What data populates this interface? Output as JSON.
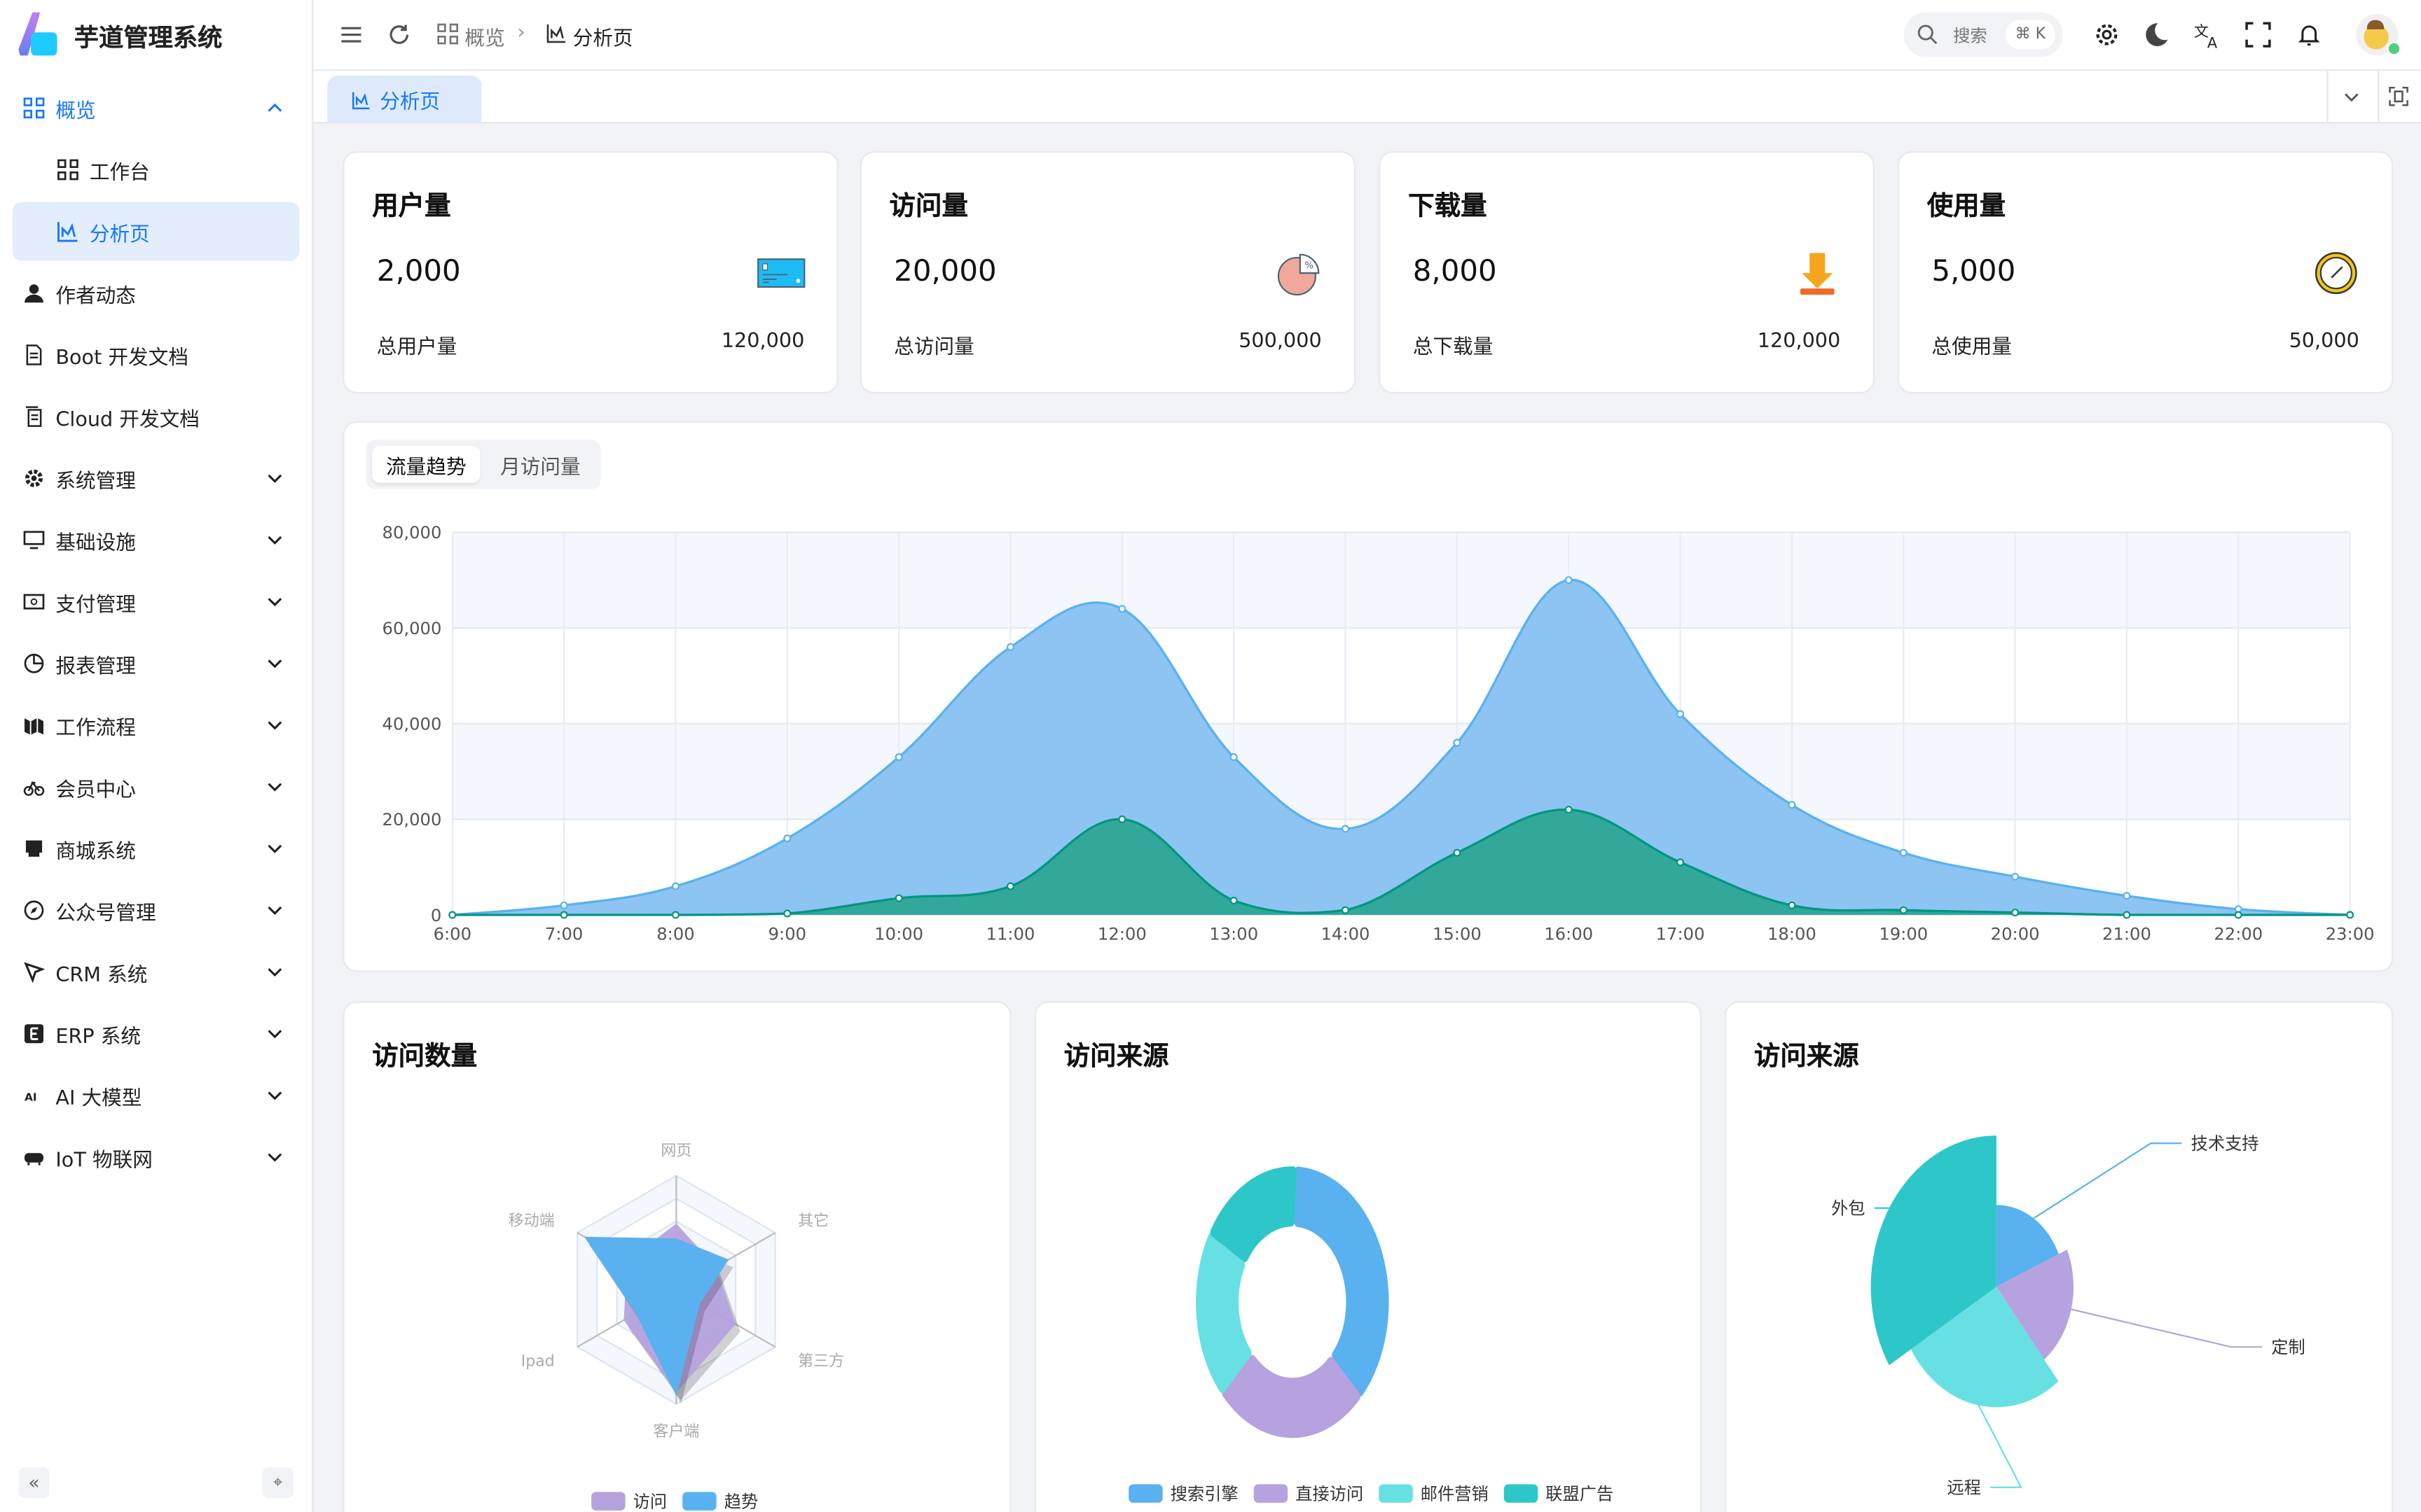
{
  "app": {
    "title": "芋道管理系统"
  },
  "sidebar": {
    "items": [
      {
        "label": "概览",
        "icon": "grid-icon",
        "expanded": true
      },
      {
        "label": "工作台",
        "icon": "grid-icon",
        "sub": true
      },
      {
        "label": "分析页",
        "icon": "chart-icon",
        "sub": true,
        "active": true
      },
      {
        "label": "作者动态",
        "icon": "user-icon"
      },
      {
        "label": "Boot 开发文档",
        "icon": "document-icon"
      },
      {
        "label": "Cloud 开发文档",
        "icon": "documents-icon"
      },
      {
        "label": "系统管理",
        "icon": "gear-icon",
        "chevron": true
      },
      {
        "label": "基础设施",
        "icon": "monitor-icon",
        "chevron": true
      },
      {
        "label": "支付管理",
        "icon": "payment-icon",
        "chevron": true
      },
      {
        "label": "报表管理",
        "icon": "pie-icon",
        "chevron": true
      },
      {
        "label": "工作流程",
        "icon": "workflow-icon",
        "chevron": true
      },
      {
        "label": "会员中心",
        "icon": "bike-icon",
        "chevron": true
      },
      {
        "label": "商城系统",
        "icon": "shop-icon",
        "chevron": true
      },
      {
        "label": "公众号管理",
        "icon": "compass-icon",
        "chevron": true
      },
      {
        "label": "CRM 系统",
        "icon": "crm-icon",
        "chevron": true
      },
      {
        "label": "ERP 系统",
        "icon": "erp-icon",
        "chevron": true
      },
      {
        "label": "AI 大模型",
        "icon": "ai-icon",
        "chevron": true
      },
      {
        "label": "IoT 物联网",
        "icon": "iot-icon",
        "chevron": true
      }
    ]
  },
  "header": {
    "breadcrumb": [
      "概览",
      "分析页"
    ],
    "search_placeholder": "搜索",
    "search_shortcut": "⌘ K"
  },
  "tabs": [
    {
      "label": "分析页",
      "active": true
    }
  ],
  "stats": [
    {
      "title": "用户量",
      "value": "2,000",
      "total_label": "总用户量",
      "total": "120,000",
      "icon": "credit-card-icon"
    },
    {
      "title": "访问量",
      "value": "20,000",
      "total_label": "总访问量",
      "total": "500,000",
      "icon": "pie-chart-icon"
    },
    {
      "title": "下载量",
      "value": "8,000",
      "total_label": "总下载量",
      "total": "120,000",
      "icon": "download-icon"
    },
    {
      "title": "使用量",
      "value": "5,000",
      "total_label": "总使用量",
      "total": "50,000",
      "icon": "clock-icon"
    }
  ],
  "trend": {
    "tabs": [
      "流量趋势",
      "月访问量"
    ],
    "active_tab": 0
  },
  "bottom": {
    "titles": [
      "访问数量",
      "访问来源",
      "访问来源"
    ]
  },
  "colors": {
    "accent": "#1677ff",
    "blue": "#5ab1ef",
    "purple": "#b6a2de",
    "cyan": "#67e0e3",
    "teal": "#2ec7c9",
    "green": "#019680"
  },
  "chart_data": [
    {
      "type": "area",
      "x": [
        "6:00",
        "7:00",
        "8:00",
        "9:00",
        "10:00",
        "11:00",
        "12:00",
        "13:00",
        "14:00",
        "15:00",
        "16:00",
        "17:00",
        "18:00",
        "19:00",
        "20:00",
        "21:00",
        "22:00",
        "23:00"
      ],
      "yticks": [
        "0",
        "20,000",
        "40,000",
        "60,000",
        "80,000"
      ],
      "ylim": [
        0,
        80000
      ],
      "grid": true,
      "series": [
        {
          "values": [
            0,
            2000,
            6000,
            16000,
            33000,
            56000,
            64000,
            33000,
            18000,
            36000,
            70000,
            42000,
            23000,
            13000,
            8000,
            4000,
            1200,
            0
          ],
          "color": "#5ab1ef"
        },
        {
          "values": [
            0,
            0,
            0,
            300,
            3500,
            6000,
            20000,
            3000,
            1000,
            13000,
            22000,
            11000,
            2000,
            1000,
            500,
            0,
            0,
            0
          ],
          "color": "#019680"
        }
      ]
    },
    {
      "type": "radar",
      "indicators": [
        "网页",
        "移动端",
        "Ipad",
        "客户端",
        "第三方",
        "其它"
      ],
      "max": 100,
      "series": [
        {
          "name": "访问",
          "values": [
            58,
            50,
            53,
            90,
            60,
            40
          ],
          "color": "#b6a2de"
        },
        {
          "name": "趋势",
          "values": [
            45,
            93,
            41,
            93,
            24,
            53
          ],
          "color": "#5ab1ef"
        }
      ],
      "legend": "bottom"
    },
    {
      "type": "pie",
      "categories": [
        "搜索引擎",
        "直接访问",
        "邮件营销",
        "联盟广告"
      ],
      "values": [
        1048,
        735,
        580,
        484
      ],
      "colors": [
        "#5ab1ef",
        "#b6a2de",
        "#67e0e3",
        "#2ec7c9"
      ],
      "legend": "bottom"
    },
    {
      "type": "pie",
      "rose": "radius",
      "categories": [
        "技术支持",
        "定制",
        "远程",
        "外包"
      ],
      "values": [
        274,
        310,
        400,
        500
      ],
      "colors": [
        "#5ab1ef",
        "#b6a2de",
        "#67e0e3",
        "#2ec7c9"
      ]
    }
  ]
}
